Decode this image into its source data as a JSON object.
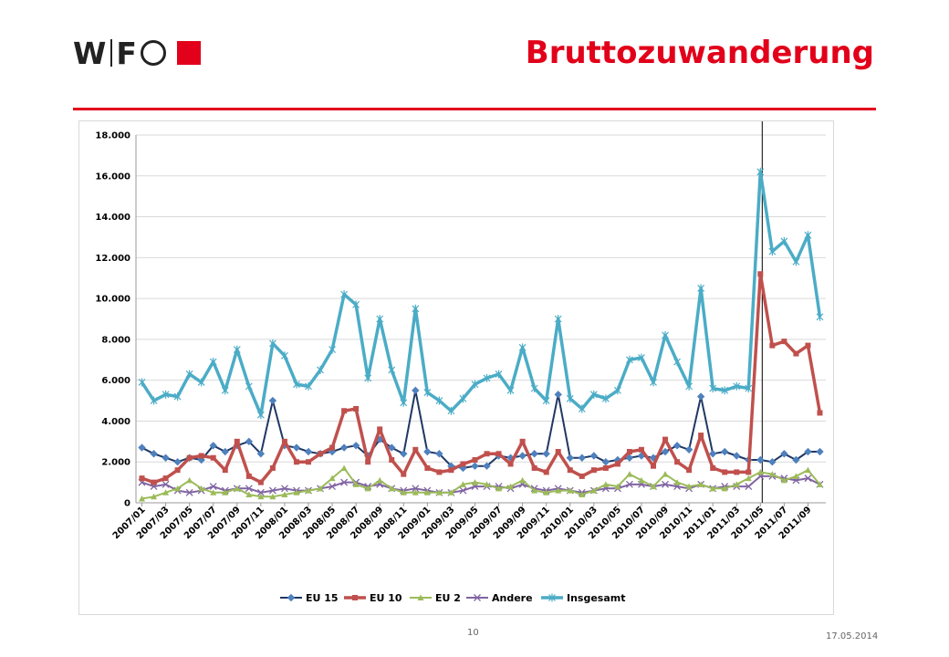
{
  "header": {
    "logo_alt": "WIFO",
    "title": "Bruttozuwanderung"
  },
  "footer": {
    "page_number": "10",
    "date": "17.05.2014"
  },
  "chart_data": {
    "type": "line",
    "title": "",
    "xlabel": "",
    "ylabel": "",
    "ylim": [
      0,
      18000
    ],
    "y_ticks": [
      0,
      2000,
      4000,
      6000,
      8000,
      10000,
      12000,
      14000,
      16000,
      18000
    ],
    "y_tick_labels": [
      "0",
      "2.000",
      "4.000",
      "6.000",
      "8.000",
      "10.000",
      "12.000",
      "14.000",
      "16.000",
      "18.000"
    ],
    "grid": true,
    "legend_position": "bottom",
    "x_tick_labels": [
      "2007/01",
      "2007/03",
      "2007/05",
      "2007/07",
      "2007/09",
      "2007/11",
      "2008/01",
      "2008/03",
      "2008/05",
      "2008/07",
      "2008/09",
      "2008/11",
      "2009/01",
      "2009/03",
      "2009/05",
      "2009/07",
      "2009/09",
      "2009/11",
      "2010/01",
      "2010/03",
      "2010/05",
      "2010/07",
      "2010/09",
      "2010/11",
      "2011/01",
      "2011/03",
      "2011/05",
      "2011/07",
      "2011/09"
    ],
    "marker_line_category_index": 52,
    "series": [
      {
        "name": "EU 15",
        "color": "#1f3864",
        "marker": "diamond-blue",
        "values": [
          2700,
          2400,
          2200,
          2000,
          2200,
          2100,
          2800,
          2500,
          2800,
          3000,
          2400,
          5000,
          2800,
          2700,
          2500,
          2400,
          2500,
          2700,
          2800,
          2300,
          3100,
          2700,
          2400,
          5500,
          2500,
          2400,
          1800,
          1700,
          1800,
          1800,
          2300,
          2200,
          2300,
          2400,
          2400,
          5300,
          2200,
          2200,
          2300,
          2000,
          2100,
          2200,
          2300,
          2200,
          2500,
          2800,
          2600,
          5200,
          2400,
          2500,
          2300,
          2100,
          2100,
          2000,
          2400,
          2100,
          2500,
          2500
        ]
      },
      {
        "name": "EU 10",
        "color": "#c0504d",
        "marker": "square",
        "values": [
          1200,
          1000,
          1200,
          1600,
          2200,
          2300,
          2200,
          1600,
          3000,
          1300,
          1000,
          1700,
          3000,
          2000,
          2000,
          2400,
          2700,
          4500,
          4600,
          2000,
          3600,
          2100,
          1400,
          2600,
          1700,
          1500,
          1600,
          1900,
          2100,
          2400,
          2400,
          1900,
          3000,
          1700,
          1500,
          2500,
          1600,
          1300,
          1600,
          1700,
          1900,
          2500,
          2600,
          1800,
          3100,
          2000,
          1600,
          3300,
          1700,
          1500,
          1500,
          1500,
          11200,
          7700,
          7900,
          7300,
          7700,
          4400
        ]
      },
      {
        "name": "EU 2",
        "color": "#9bbb59",
        "marker": "triangle",
        "values": [
          200,
          300,
          500,
          700,
          1100,
          700,
          500,
          500,
          700,
          400,
          300,
          300,
          400,
          500,
          600,
          700,
          1200,
          1700,
          900,
          700,
          1100,
          700,
          500,
          500,
          500,
          500,
          500,
          900,
          1000,
          900,
          700,
          800,
          1100,
          600,
          500,
          600,
          600,
          400,
          600,
          900,
          800,
          1400,
          1100,
          800,
          1400,
          1000,
          800,
          900,
          700,
          700,
          900,
          1200,
          1500,
          1400,
          1100,
          1300,
          1600,
          900
        ]
      },
      {
        "name": "Andere",
        "color": "#8064a2",
        "marker": "x",
        "values": [
          1000,
          800,
          900,
          600,
          500,
          600,
          800,
          600,
          700,
          700,
          500,
          600,
          700,
          600,
          600,
          700,
          800,
          1000,
          1000,
          800,
          900,
          700,
          600,
          700,
          600,
          500,
          500,
          600,
          800,
          800,
          800,
          700,
          900,
          700,
          600,
          700,
          600,
          500,
          600,
          700,
          700,
          900,
          900,
          800,
          900,
          800,
          700,
          900,
          700,
          800,
          800,
          800,
          1300,
          1300,
          1200,
          1100,
          1200,
          900
        ]
      },
      {
        "name": "Insgesamt",
        "color": "#4bacc6",
        "marker": "star",
        "values": [
          5900,
          5000,
          5300,
          5200,
          6300,
          5900,
          6900,
          5500,
          7500,
          5700,
          4300,
          7800,
          7200,
          5800,
          5700,
          6500,
          7500,
          10200,
          9700,
          6100,
          9000,
          6500,
          4900,
          9500,
          5400,
          5000,
          4500,
          5100,
          5800,
          6100,
          6300,
          5500,
          7600,
          5600,
          5000,
          9000,
          5100,
          4600,
          5300,
          5100,
          5500,
          7000,
          7100,
          5900,
          8200,
          6900,
          5700,
          10500,
          5600,
          5500,
          5700,
          5600,
          16200,
          12300,
          12800,
          11800,
          13100,
          9100
        ]
      }
    ]
  }
}
